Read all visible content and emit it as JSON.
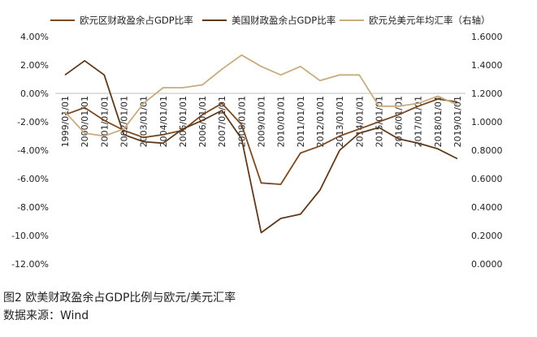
{
  "chart_data": {
    "type": "line",
    "title": "",
    "legend_position": "top",
    "x": [
      "1999/01/01",
      "2000/01/01",
      "2001/01/01",
      "2002/01/01",
      "2003/01/01",
      "2004/01/01",
      "2005/01/01",
      "2006/01/01",
      "2007/01/01",
      "2008/01/01",
      "2009/01/01",
      "2010/01/01",
      "2011/01/01",
      "2012/01/01",
      "2013/01/01",
      "2014/01/01",
      "2015/01/01",
      "2016/01/01",
      "2017/01/01",
      "2018/01/01",
      "2019/01/01"
    ],
    "left_axis": {
      "ticks": [
        "4.00%",
        "2.00%",
        "0.00%",
        "-2.00%",
        "-4.00%",
        "-6.00%",
        "-8.00%",
        "-10.00%",
        "-12.00%"
      ],
      "ylim": [
        -12,
        4
      ]
    },
    "right_axis": {
      "ticks": [
        "1.6000",
        "1.4000",
        "1.2000",
        "1.0000",
        "0.8000",
        "0.6000",
        "0.4000",
        "0.2000",
        "0.0000"
      ],
      "ylim": [
        0,
        1.6
      ]
    },
    "series": [
      {
        "name": "欧元区财政盈余占GDP比率",
        "axis": "left",
        "color": "#7a4a25",
        "values": [
          -1.5,
          -1.0,
          -1.9,
          -2.6,
          -3.1,
          -2.9,
          -2.6,
          -1.5,
          -0.7,
          -2.2,
          -6.3,
          -6.4,
          -4.2,
          -3.7,
          -3.0,
          -2.5,
          -2.0,
          -1.5,
          -0.9,
          -0.4,
          -0.6
        ]
      },
      {
        "name": "美国财政盈余占GDP比率",
        "axis": "left",
        "color": "#5c3a1e",
        "values": [
          1.3,
          2.3,
          1.3,
          -2.9,
          -3.4,
          -3.5,
          -2.5,
          -1.9,
          -1.2,
          -3.2,
          -9.8,
          -8.8,
          -8.5,
          -6.8,
          -4.0,
          -2.8,
          -2.4,
          -3.2,
          -3.5,
          -3.9,
          -4.6
        ]
      },
      {
        "name": "欧元兑美元年均汇率（右轴）",
        "axis": "right",
        "color": "#c8ab7e",
        "values": [
          1.07,
          0.92,
          0.9,
          0.95,
          1.13,
          1.24,
          1.24,
          1.26,
          1.37,
          1.47,
          1.39,
          1.33,
          1.39,
          1.29,
          1.33,
          1.33,
          1.11,
          1.11,
          1.13,
          1.18,
          1.12
        ]
      }
    ]
  },
  "caption": {
    "figure_title": "图2 欧美财政盈余占GDP比例与欧元/美元汇率",
    "source": "数据来源：Wind"
  }
}
